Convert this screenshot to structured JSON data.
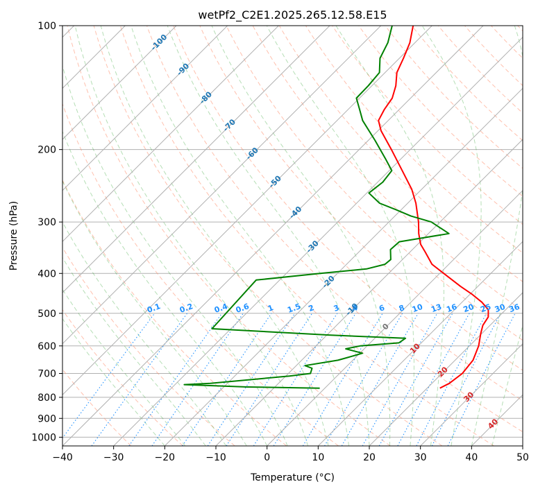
{
  "chart_data": {
    "type": "line",
    "title": "wetPf2_C2E1.2025.265.12.58.E15",
    "xlabel": "Temperature (°C)",
    "ylabel": "Pressure (hPa)",
    "xlim": [
      -40,
      50
    ],
    "ylim": [
      1050,
      100
    ],
    "y_scale": "log",
    "x_ticks": [
      -40,
      -30,
      -20,
      -10,
      0,
      10,
      20,
      30,
      40,
      50
    ],
    "y_ticks": [
      100,
      200,
      300,
      400,
      500,
      600,
      700,
      800,
      900,
      1000
    ],
    "grid": true,
    "skew": "temperature isotherms skewed 45°",
    "colors": {
      "temperature": "#ff0000",
      "dewpoint": "#008000",
      "dry_adiabat": "#ff8c69",
      "moist_adiabat": "#2ca02c",
      "mixing_ratio": "#1e90ff",
      "isotherm_labels": "#1f77b4",
      "dry_adiabat_labels": "#d62728",
      "grid": "#b0b0b0"
    },
    "isotherm_labels": [
      "-100",
      "-90",
      "-80",
      "-70",
      "-60",
      "-50",
      "-40",
      "-30",
      "-20",
      "-10",
      "0",
      "10",
      "20",
      "30",
      "40"
    ],
    "mixing_ratio_labels": [
      "0.1",
      "0.2",
      "0.4",
      "0.6",
      "1",
      "1.5",
      "2",
      "3",
      "4",
      "6",
      "8",
      "10",
      "13",
      "16",
      "20",
      "25",
      "30",
      "36"
    ],
    "series": [
      {
        "name": "Temperature",
        "points": [
          {
            "p": 760,
            "t": 22.5
          },
          {
            "p": 740,
            "t": 23.4
          },
          {
            "p": 700,
            "t": 24.0
          },
          {
            "p": 650,
            "t": 23.5
          },
          {
            "p": 600,
            "t": 21.8
          },
          {
            "p": 560,
            "t": 19.8
          },
          {
            "p": 535,
            "t": 18.6
          },
          {
            "p": 510,
            "t": 18.0
          },
          {
            "p": 490,
            "t": 16.6
          },
          {
            "p": 470,
            "t": 13.9
          },
          {
            "p": 450,
            "t": 10.5
          },
          {
            "p": 430,
            "t": 6.6
          },
          {
            "p": 400,
            "t": 0.8
          },
          {
            "p": 380,
            "t": -3.3
          },
          {
            "p": 355,
            "t": -7.0
          },
          {
            "p": 340,
            "t": -9.4
          },
          {
            "p": 320,
            "t": -11.9
          },
          {
            "p": 300,
            "t": -14.2
          },
          {
            "p": 270,
            "t": -18.4
          },
          {
            "p": 250,
            "t": -21.9
          },
          {
            "p": 230,
            "t": -26.3
          },
          {
            "p": 200,
            "t": -33.7
          },
          {
            "p": 180,
            "t": -39.4
          },
          {
            "p": 170,
            "t": -41.9
          },
          {
            "p": 160,
            "t": -42.9
          },
          {
            "p": 150,
            "t": -43.6
          },
          {
            "p": 140,
            "t": -45.3
          },
          {
            "p": 130,
            "t": -47.7
          },
          {
            "p": 120,
            "t": -49.2
          },
          {
            "p": 110,
            "t": -51.0
          },
          {
            "p": 100,
            "t": -53.7
          }
        ]
      },
      {
        "name": "Dewpoint",
        "points": [
          {
            "p": 760,
            "t": -1.0
          },
          {
            "p": 755,
            "t": -15.4
          },
          {
            "p": 745,
            "t": -28.2
          },
          {
            "p": 740,
            "t": -23.3
          },
          {
            "p": 710,
            "t": -9.3
          },
          {
            "p": 700,
            "t": -5.7
          },
          {
            "p": 680,
            "t": -6.4
          },
          {
            "p": 670,
            "t": -8.3
          },
          {
            "p": 650,
            "t": -2.9
          },
          {
            "p": 640,
            "t": -1.5
          },
          {
            "p": 625,
            "t": 0.5
          },
          {
            "p": 610,
            "t": -3.6
          },
          {
            "p": 600,
            "t": -1.4
          },
          {
            "p": 590,
            "t": 5.6
          },
          {
            "p": 575,
            "t": 6.0
          },
          {
            "p": 565,
            "t": -9.2
          },
          {
            "p": 545,
            "t": -33.7
          },
          {
            "p": 415,
            "t": -34.6
          },
          {
            "p": 400,
            "t": -23.4
          },
          {
            "p": 390,
            "t": -15.2
          },
          {
            "p": 380,
            "t": -12.5
          },
          {
            "p": 370,
            "t": -12.3
          },
          {
            "p": 350,
            "t": -14.3
          },
          {
            "p": 335,
            "t": -14.1
          },
          {
            "p": 320,
            "t": -6.0
          },
          {
            "p": 300,
            "t": -11.7
          },
          {
            "p": 290,
            "t": -16.9
          },
          {
            "p": 280,
            "t": -21.0
          },
          {
            "p": 270,
            "t": -25.5
          },
          {
            "p": 255,
            "t": -29.6
          },
          {
            "p": 240,
            "t": -29.0
          },
          {
            "p": 225,
            "t": -29.5
          },
          {
            "p": 210,
            "t": -33.2
          },
          {
            "p": 190,
            "t": -38.7
          },
          {
            "p": 170,
            "t": -45.0
          },
          {
            "p": 160,
            "t": -47.7
          },
          {
            "p": 150,
            "t": -50.6
          },
          {
            "p": 140,
            "t": -50.7
          },
          {
            "p": 130,
            "t": -51.1
          },
          {
            "p": 120,
            "t": -53.8
          },
          {
            "p": 110,
            "t": -55.3
          },
          {
            "p": 100,
            "t": -57.8
          }
        ]
      }
    ]
  }
}
